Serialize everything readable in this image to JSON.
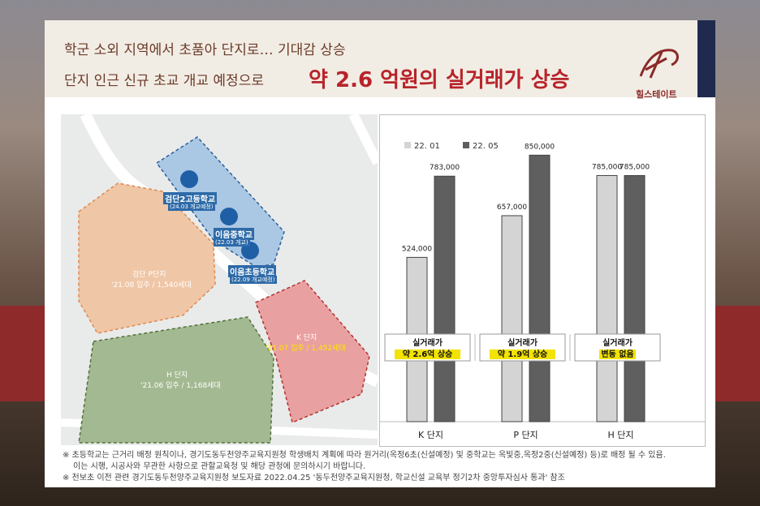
{
  "header": {
    "line1": "학군 소외 지역에서 초품아 단지로… 기대감 상승",
    "line2": "단지 인근 신규 초교 개교 예정으로",
    "headline": "약 2.6 억원의 실거래가 상승",
    "logo_text": "힐스테이트"
  },
  "map": {
    "schools": [
      {
        "name": "검단2고등학교",
        "note": "(24.03 개교예정)"
      },
      {
        "name": "이음중학교",
        "note": "(22.03 개교)"
      },
      {
        "name": "이음초등학교",
        "note": "(22.09 개교예정)"
      }
    ],
    "zones": [
      {
        "name": "검단 P단지",
        "info": "'21.08 입주 / 1,540세대",
        "color": "#e9a16e"
      },
      {
        "name": "H 단지",
        "info": "'21.06 입주 / 1,168세대",
        "color": "#7fa06c"
      },
      {
        "name": "K 단지",
        "info": "'21.07 입주 / 1,452세대",
        "color": "#e27a7a"
      }
    ]
  },
  "chart_data": {
    "type": "bar",
    "categories": [
      "K 단지",
      "P 단지",
      "H 단지"
    ],
    "series": [
      {
        "name": "22. 01",
        "values": [
          524000,
          657000,
          785000
        ],
        "color": "#d4d4d4"
      },
      {
        "name": "22. 05",
        "values": [
          783000,
          850000,
          785000
        ],
        "color": "#5f5f5f"
      }
    ],
    "value_labels": [
      [
        "524,000",
        "657,000",
        "785,000"
      ],
      [
        "783,000",
        "850,000",
        "785,000"
      ]
    ],
    "ylim": [
      0,
      900000
    ],
    "grid": false,
    "legend": "top-left",
    "annotations": [
      {
        "title": "실거래가",
        "text": "약 2.6억 상승"
      },
      {
        "title": "실거래가",
        "text": "약 1.9억 상승"
      },
      {
        "title": "실거래가",
        "text": "변동 없음"
      }
    ]
  },
  "notes": [
    "※ 초등학교는 근거리 배정 원칙이나, 경기도동두천양주교육지원청 학생배치 계획에 따라 원거리(옥정6초(신설예정) 및 중학교는 옥빛중,옥정2중(신설예정) 등)로 배정 될 수 있음.",
    "이는 시행, 시공사와 무관한 사항으로 관할교육청 및 해당 관청에 문의하시기 바랍니다.",
    "※ 천보초 이전 관련 경기도동두천양주교육지원청 보도자료 2022.04.25 '동두천양주교육지원청, 학교신설 교육부 정기2차 중앙투자심사 통과' 참조"
  ]
}
